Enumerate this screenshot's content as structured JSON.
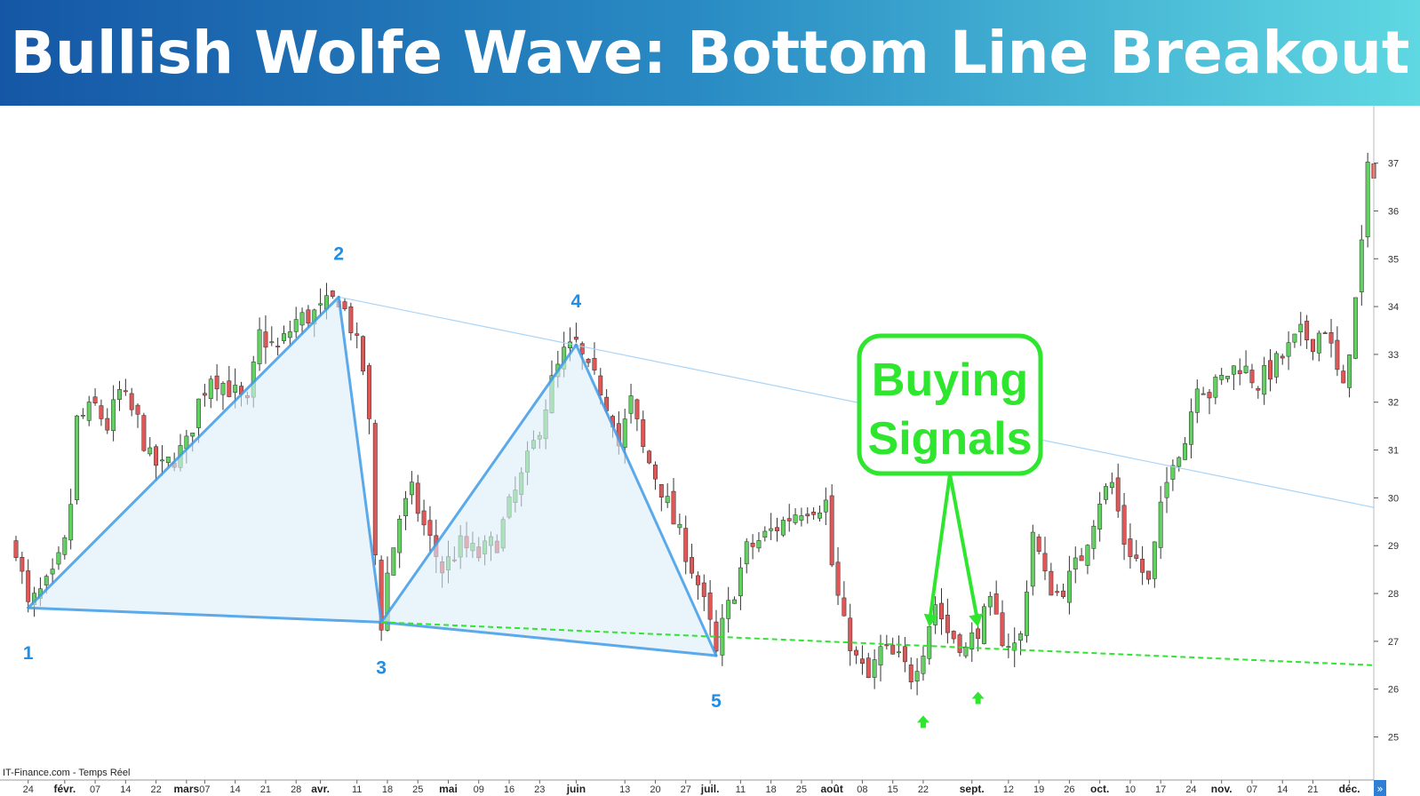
{
  "header": {
    "title": "Bullish Wolfe Wave: Bottom Line Breakout"
  },
  "source_label": "IT-Finance.com - Temps Réel",
  "nav_icon": "double-chevron-right-icon",
  "colors": {
    "up": "#62d162",
    "down": "#e05757",
    "wick": "#333333",
    "wave_fill": "#dcecf9",
    "wave_line": "#3f9be6",
    "upper_line": "#a9d4f7",
    "breakout_line": "#2ee62e",
    "signal": "#2ee62e",
    "label": "#1e8ee6"
  },
  "chart_data": {
    "type": "candlestick",
    "title": "Bullish Wolfe Wave: Bottom Line Breakout",
    "ylim": [
      24.1,
      38.2
    ],
    "y_ticks": [
      25,
      26,
      27,
      28,
      29,
      30,
      31,
      32,
      33,
      34,
      35,
      36,
      37
    ],
    "x_range": [
      0,
      223
    ],
    "x_ticks": [
      {
        "i": 2,
        "label": "24",
        "major": false
      },
      {
        "i": 8,
        "label": "févr.",
        "major": true
      },
      {
        "i": 13,
        "label": "07",
        "major": false
      },
      {
        "i": 18,
        "label": "14",
        "major": false
      },
      {
        "i": 23,
        "label": "22",
        "major": false
      },
      {
        "i": 28,
        "label": "mars",
        "major": true
      },
      {
        "i": 31,
        "label": "07",
        "major": false
      },
      {
        "i": 36,
        "label": "14",
        "major": false
      },
      {
        "i": 41,
        "label": "21",
        "major": false
      },
      {
        "i": 46,
        "label": "28",
        "major": false
      },
      {
        "i": 50,
        "label": "avr.",
        "major": true
      },
      {
        "i": 56,
        "label": "11",
        "major": false
      },
      {
        "i": 61,
        "label": "18",
        "major": false
      },
      {
        "i": 66,
        "label": "25",
        "major": false
      },
      {
        "i": 71,
        "label": "mai",
        "major": true
      },
      {
        "i": 76,
        "label": "09",
        "major": false
      },
      {
        "i": 81,
        "label": "16",
        "major": false
      },
      {
        "i": 86,
        "label": "23",
        "major": false
      },
      {
        "i": 92,
        "label": "juin",
        "major": true
      },
      {
        "i": 100,
        "label": "13",
        "major": false
      },
      {
        "i": 105,
        "label": "20",
        "major": false
      },
      {
        "i": 110,
        "label": "27",
        "major": false
      },
      {
        "i": 114,
        "label": "juil.",
        "major": true
      },
      {
        "i": 119,
        "label": "11",
        "major": false
      },
      {
        "i": 124,
        "label": "18",
        "major": false
      },
      {
        "i": 129,
        "label": "25",
        "major": false
      },
      {
        "i": 134,
        "label": "août",
        "major": true
      },
      {
        "i": 139,
        "label": "08",
        "major": false
      },
      {
        "i": 144,
        "label": "15",
        "major": false
      },
      {
        "i": 149,
        "label": "22",
        "major": false
      },
      {
        "i": 157,
        "label": "sept.",
        "major": true
      },
      {
        "i": 163,
        "label": "12",
        "major": false
      },
      {
        "i": 168,
        "label": "19",
        "major": false
      },
      {
        "i": 173,
        "label": "26",
        "major": false
      },
      {
        "i": 178,
        "label": "oct.",
        "major": true
      },
      {
        "i": 183,
        "label": "10",
        "major": false
      },
      {
        "i": 188,
        "label": "17",
        "major": false
      },
      {
        "i": 193,
        "label": "24",
        "major": false
      },
      {
        "i": 198,
        "label": "nov.",
        "major": true
      },
      {
        "i": 203,
        "label": "07",
        "major": false
      },
      {
        "i": 208,
        "label": "14",
        "major": false
      },
      {
        "i": 213,
        "label": "21",
        "major": false
      },
      {
        "i": 219,
        "label": "déc.",
        "major": true
      }
    ],
    "anchors": [
      [
        0,
        29.0
      ],
      [
        2,
        27.7
      ],
      [
        6,
        28.3
      ],
      [
        8,
        29.0
      ],
      [
        9,
        29.9
      ],
      [
        10,
        31.6
      ],
      [
        13,
        31.9
      ],
      [
        15,
        31.5
      ],
      [
        17,
        32.2
      ],
      [
        20,
        31.6
      ],
      [
        22,
        30.8
      ],
      [
        24,
        30.6
      ],
      [
        28,
        31.1
      ],
      [
        30,
        32.0
      ],
      [
        32,
        32.6
      ],
      [
        35,
        32.3
      ],
      [
        38,
        31.9
      ],
      [
        40,
        33.4
      ],
      [
        43,
        33.1
      ],
      [
        46,
        33.7
      ],
      [
        50,
        33.9
      ],
      [
        53,
        34.2
      ],
      [
        55,
        33.6
      ],
      [
        57,
        32.7
      ],
      [
        58,
        31.5
      ],
      [
        59,
        28.8
      ],
      [
        60,
        27.4
      ],
      [
        61,
        28.4
      ],
      [
        63,
        29.6
      ],
      [
        65,
        30.1
      ],
      [
        67,
        29.4
      ],
      [
        70,
        28.5
      ],
      [
        73,
        29.0
      ],
      [
        76,
        28.8
      ],
      [
        79,
        29.1
      ],
      [
        81,
        29.8
      ],
      [
        83,
        30.4
      ],
      [
        85,
        31.1
      ],
      [
        88,
        32.4
      ],
      [
        90,
        33.0
      ],
      [
        92,
        33.2
      ],
      [
        94,
        32.6
      ],
      [
        96,
        32.3
      ],
      [
        98,
        31.7
      ],
      [
        99,
        31.1
      ],
      [
        101,
        32.0
      ],
      [
        103,
        31.0
      ],
      [
        106,
        30.2
      ],
      [
        108,
        29.5
      ],
      [
        110,
        28.9
      ],
      [
        112,
        28.2
      ],
      [
        114,
        27.3
      ],
      [
        115,
        26.7
      ],
      [
        116,
        27.3
      ],
      [
        118,
        28.1
      ],
      [
        120,
        28.9
      ],
      [
        123,
        29.2
      ],
      [
        126,
        29.5
      ],
      [
        129,
        29.8
      ],
      [
        133,
        29.9
      ],
      [
        134,
        28.6
      ],
      [
        135,
        27.9
      ],
      [
        136,
        27.3
      ],
      [
        137,
        27.0
      ],
      [
        138,
        26.6
      ],
      [
        140,
        26.2
      ],
      [
        142,
        26.8
      ],
      [
        145,
        26.6
      ],
      [
        147,
        26.3
      ],
      [
        149,
        26.9
      ],
      [
        150,
        27.4
      ],
      [
        151,
        27.8
      ],
      [
        153,
        27.2
      ],
      [
        155,
        27.0
      ],
      [
        156,
        26.8
      ],
      [
        158,
        27.3
      ],
      [
        160,
        27.7
      ],
      [
        162,
        27.1
      ],
      [
        164,
        26.9
      ],
      [
        165,
        27.1
      ],
      [
        167,
        29.3
      ],
      [
        169,
        28.3
      ],
      [
        171,
        28.0
      ],
      [
        173,
        28.3
      ],
      [
        175,
        28.8
      ],
      [
        178,
        30.0
      ],
      [
        180,
        30.3
      ],
      [
        182,
        29.1
      ],
      [
        184,
        28.7
      ],
      [
        186,
        28.2
      ],
      [
        188,
        29.7
      ],
      [
        190,
        30.9
      ],
      [
        192,
        31.2
      ],
      [
        194,
        32.5
      ],
      [
        196,
        32.2
      ],
      [
        199,
        32.6
      ],
      [
        201,
        32.8
      ],
      [
        204,
        32.4
      ],
      [
        207,
        32.8
      ],
      [
        209,
        33.1
      ],
      [
        211,
        33.4
      ],
      [
        213,
        33.3
      ],
      [
        215,
        33.6
      ],
      [
        217,
        32.6
      ],
      [
        218,
        32.2
      ],
      [
        219,
        33.2
      ],
      [
        220,
        34.1
      ],
      [
        221,
        35.3
      ],
      [
        222,
        36.8
      ],
      [
        223,
        36.9
      ]
    ],
    "wave_points": [
      {
        "label": "1",
        "i": 2,
        "price": 27.7
      },
      {
        "label": "2",
        "i": 53,
        "price": 34.2
      },
      {
        "label": "3",
        "i": 60,
        "price": 27.4
      },
      {
        "label": "4",
        "i": 92,
        "price": 33.2
      },
      {
        "label": "5",
        "i": 115,
        "price": 26.7
      }
    ],
    "upper_line": {
      "from": {
        "i": 53,
        "price": 34.2
      },
      "to": {
        "i": 223,
        "price": 29.8
      }
    },
    "breakout_line": {
      "from": {
        "i": 60,
        "price": 27.4
      },
      "to": {
        "i": 223,
        "price": 26.5
      }
    },
    "buying_signals": {
      "label_lines": [
        "Buying",
        "Signals"
      ],
      "arrows": [
        {
          "i": 150,
          "price": 27.3
        },
        {
          "i": 158,
          "price": 27.3
        }
      ],
      "up_markers": [
        {
          "i": 149,
          "price": 25.3
        },
        {
          "i": 158,
          "price": 25.8
        }
      ]
    }
  }
}
